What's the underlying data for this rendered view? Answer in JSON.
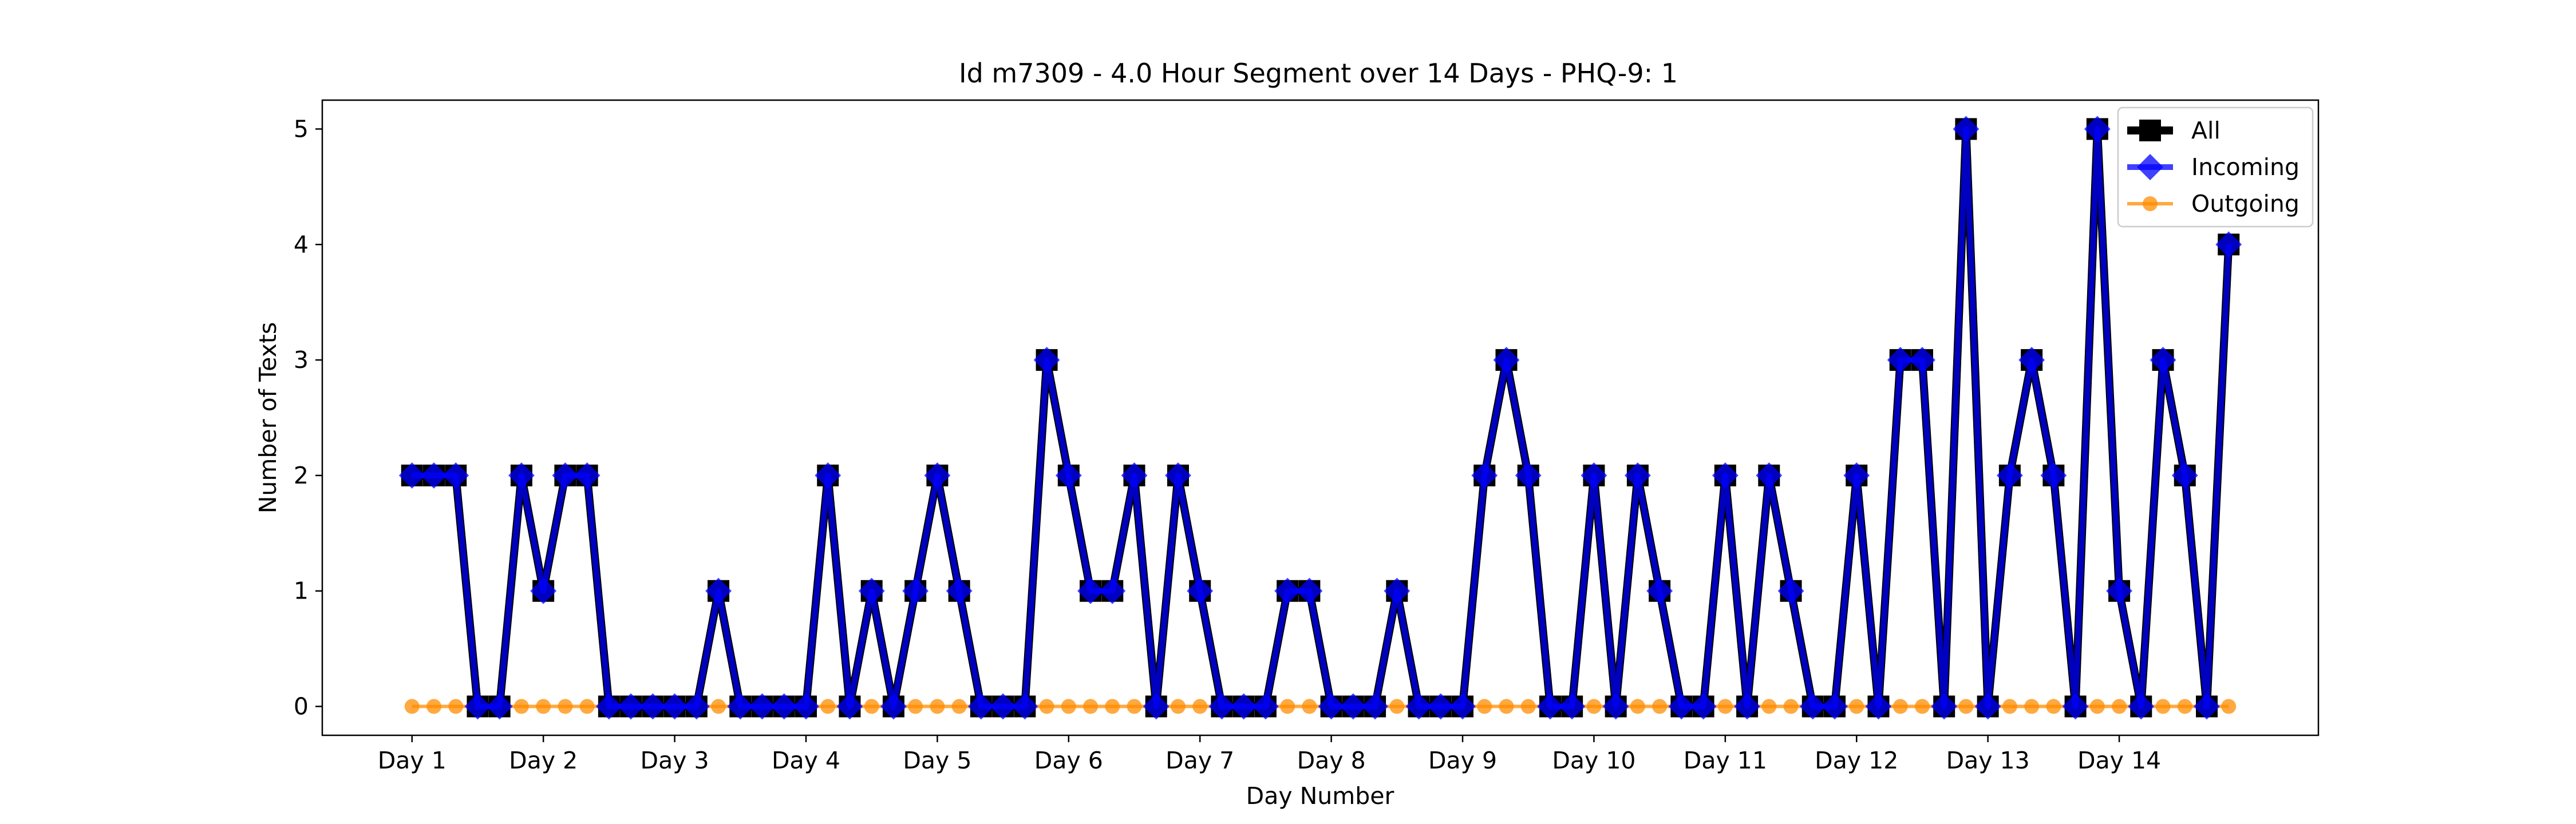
{
  "chart_data": {
    "type": "line",
    "title": "Id m7309 - 4.0 Hour Segment over 14 Days - PHQ-9: 1",
    "xlabel": "Day Number",
    "ylabel": "Number of Texts",
    "x_ticks": [
      {
        "x": 0,
        "label": "Day 1"
      },
      {
        "x": 6,
        "label": "Day 2"
      },
      {
        "x": 12,
        "label": "Day 3"
      },
      {
        "x": 18,
        "label": "Day 4"
      },
      {
        "x": 24,
        "label": "Day 5"
      },
      {
        "x": 30,
        "label": "Day 6"
      },
      {
        "x": 36,
        "label": "Day 7"
      },
      {
        "x": 42,
        "label": "Day 8"
      },
      {
        "x": 48,
        "label": "Day 9"
      },
      {
        "x": 54,
        "label": "Day 10"
      },
      {
        "x": 60,
        "label": "Day 11"
      },
      {
        "x": 66,
        "label": "Day 12"
      },
      {
        "x": 72,
        "label": "Day 13"
      },
      {
        "x": 78,
        "label": "Day 14"
      }
    ],
    "y_ticks": [
      0,
      1,
      2,
      3,
      4,
      5
    ],
    "xlim": [
      -4.1,
      87.1
    ],
    "ylim": [
      -0.25,
      5.25
    ],
    "grid": false,
    "legend_position": "top-right",
    "series": [
      {
        "name": "All",
        "color": "#000000",
        "marker": "square",
        "values": [
          2,
          2,
          2,
          0,
          0,
          2,
          1,
          2,
          2,
          0,
          0,
          0,
          0,
          0,
          1,
          0,
          0,
          0,
          0,
          2,
          0,
          1,
          0,
          1,
          2,
          1,
          0,
          0,
          0,
          3,
          2,
          1,
          1,
          2,
          0,
          2,
          1,
          0,
          0,
          0,
          1,
          1,
          0,
          0,
          0,
          1,
          0,
          0,
          0,
          2,
          3,
          2,
          0,
          0,
          2,
          0,
          2,
          1,
          0,
          0,
          2,
          0,
          2,
          1,
          0,
          0,
          2,
          0,
          3,
          3,
          0,
          5,
          0,
          2,
          3,
          2,
          0,
          5,
          1,
          0,
          3,
          2,
          0,
          4
        ]
      },
      {
        "name": "Incoming",
        "color": "#0000ff",
        "marker": "diamond",
        "values": [
          2,
          2,
          2,
          0,
          0,
          2,
          1,
          2,
          2,
          0,
          0,
          0,
          0,
          0,
          1,
          0,
          0,
          0,
          0,
          2,
          0,
          1,
          0,
          1,
          2,
          1,
          0,
          0,
          0,
          3,
          2,
          1,
          1,
          2,
          0,
          2,
          1,
          0,
          0,
          0,
          1,
          1,
          0,
          0,
          0,
          1,
          0,
          0,
          0,
          2,
          3,
          2,
          0,
          0,
          2,
          0,
          2,
          1,
          0,
          0,
          2,
          0,
          2,
          1,
          0,
          0,
          2,
          0,
          3,
          3,
          0,
          5,
          0,
          2,
          3,
          2,
          0,
          5,
          1,
          0,
          3,
          2,
          0,
          4
        ]
      },
      {
        "name": "Outgoing",
        "color": "#ff8c00",
        "marker": "circle",
        "values": [
          0,
          0,
          0,
          0,
          0,
          0,
          0,
          0,
          0,
          0,
          0,
          0,
          0,
          0,
          0,
          0,
          0,
          0,
          0,
          0,
          0,
          0,
          0,
          0,
          0,
          0,
          0,
          0,
          0,
          0,
          0,
          0,
          0,
          0,
          0,
          0,
          0,
          0,
          0,
          0,
          0,
          0,
          0,
          0,
          0,
          0,
          0,
          0,
          0,
          0,
          0,
          0,
          0,
          0,
          0,
          0,
          0,
          0,
          0,
          0,
          0,
          0,
          0,
          0,
          0,
          0,
          0,
          0,
          0,
          0,
          0,
          0,
          0,
          0,
          0,
          0,
          0,
          0,
          0,
          0,
          0,
          0,
          0,
          0
        ]
      }
    ]
  }
}
